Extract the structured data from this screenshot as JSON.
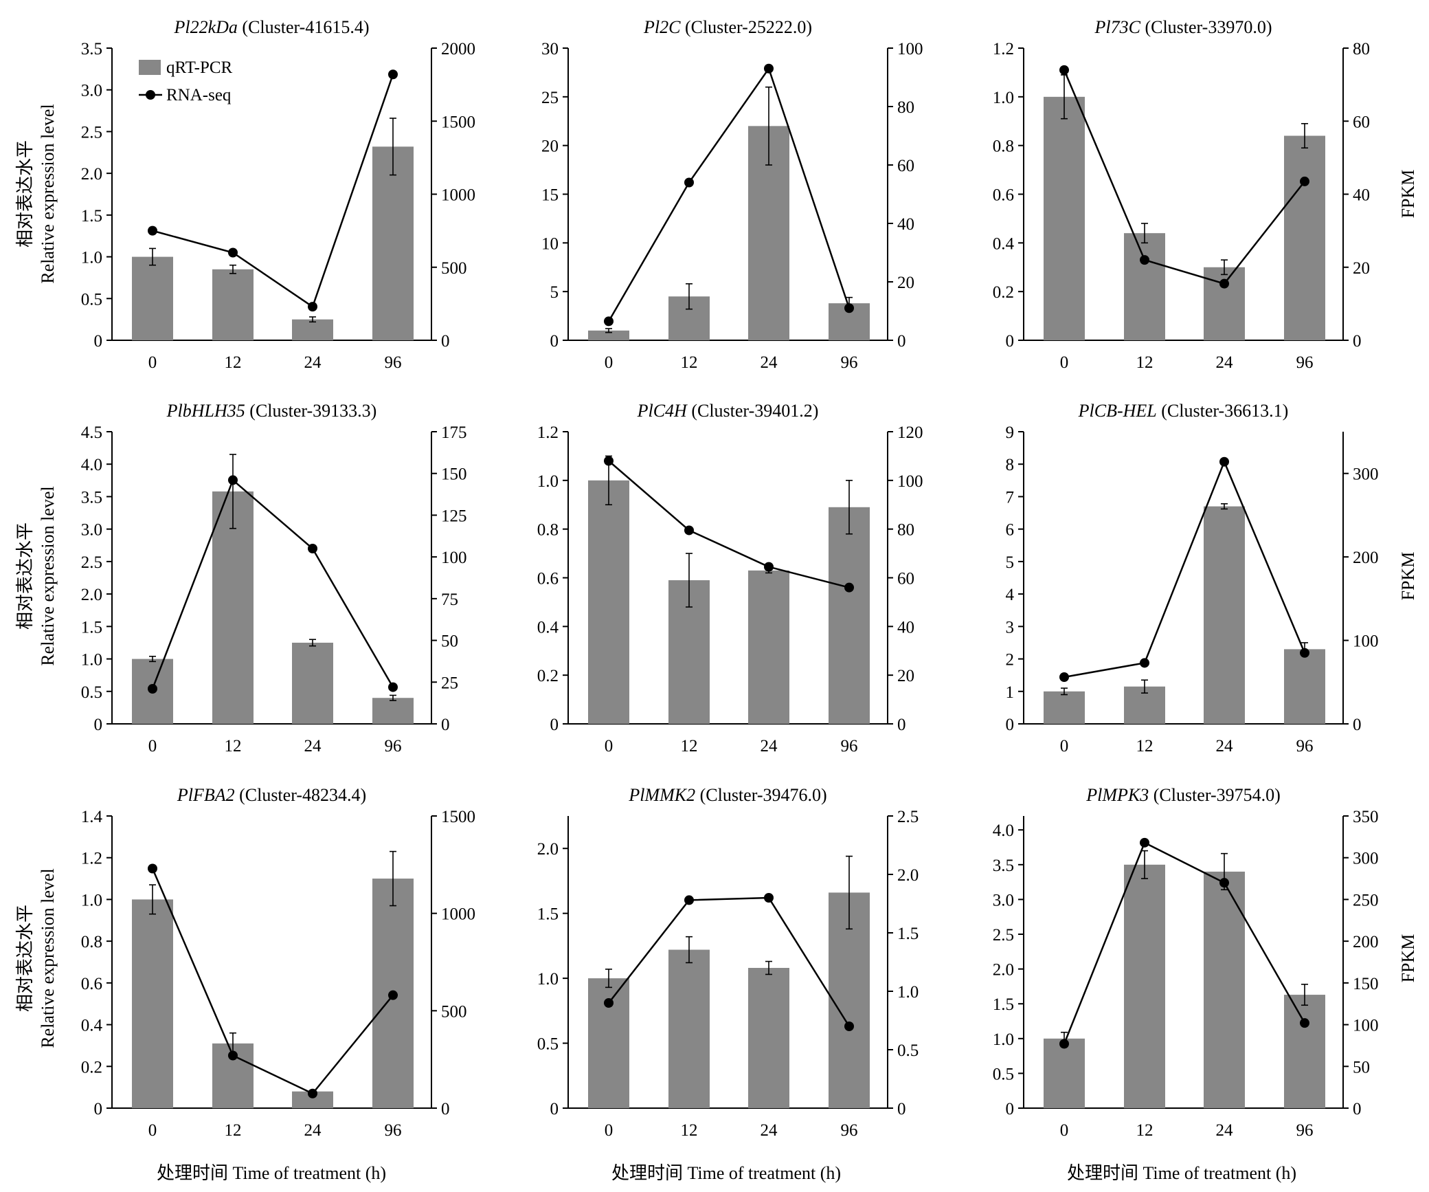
{
  "figure": {
    "y_left_label_cn": "相对表达水平",
    "y_left_label_en": "Relative expression level",
    "y_right_label": "FPKM",
    "x_label": "处理时间 Time of treatment (h)",
    "legend": {
      "bar": "qRT-PCR",
      "line": "RNA-seq"
    },
    "colors": {
      "bar": "#878787",
      "line": "#000000"
    }
  },
  "chart_data": [
    {
      "type": "bar",
      "title_gene": "Pl22kDa",
      "title_cluster": " (Cluster-41615.4)",
      "categories": [
        "0",
        "12",
        "24",
        "96"
      ],
      "series": [
        {
          "name": "qRT-PCR",
          "axis": "left",
          "values": [
            1.0,
            0.85,
            0.25,
            2.32
          ],
          "errors": [
            0.1,
            0.05,
            0.03,
            0.34
          ]
        },
        {
          "name": "RNA-seq",
          "axis": "right",
          "type": "line",
          "values": [
            750,
            600,
            230,
            1820
          ]
        }
      ],
      "ylim_left": [
        0,
        3.5
      ],
      "yticks_left": [
        "0",
        "0.5",
        "1.0",
        "1.5",
        "2.0",
        "2.5",
        "3.0",
        "3.5"
      ],
      "ylim_right": [
        0,
        2000
      ],
      "yticks_right": [
        "0",
        "500",
        "1000",
        "1500",
        "2000"
      ]
    },
    {
      "type": "bar",
      "title_gene": "Pl2C",
      "title_cluster": " (Cluster-25222.0)",
      "categories": [
        "0",
        "12",
        "24",
        "96"
      ],
      "series": [
        {
          "name": "qRT-PCR",
          "axis": "left",
          "values": [
            1.0,
            4.5,
            22.0,
            3.8
          ],
          "errors": [
            0.2,
            1.3,
            4.0,
            0.6
          ]
        },
        {
          "name": "RNA-seq",
          "axis": "right",
          "type": "line",
          "values": [
            6.5,
            54,
            93,
            11
          ]
        }
      ],
      "ylim_left": [
        0,
        30
      ],
      "yticks_left": [
        "0",
        "5",
        "10",
        "15",
        "20",
        "25",
        "30"
      ],
      "ylim_right": [
        0,
        100
      ],
      "yticks_right": [
        "0",
        "20",
        "40",
        "60",
        "80",
        "100"
      ]
    },
    {
      "type": "bar",
      "title_gene": "Pl73C",
      "title_cluster": " (Cluster-33970.0)",
      "categories": [
        "0",
        "12",
        "24",
        "96"
      ],
      "series": [
        {
          "name": "qRT-PCR",
          "axis": "left",
          "values": [
            1.0,
            0.44,
            0.3,
            0.84
          ],
          "errors": [
            0.09,
            0.04,
            0.03,
            0.05
          ]
        },
        {
          "name": "RNA-seq",
          "axis": "right",
          "type": "line",
          "values": [
            74,
            22,
            15.5,
            43.5
          ]
        }
      ],
      "ylim_left": [
        0,
        1.2
      ],
      "yticks_left": [
        "0",
        "0.2",
        "0.4",
        "0.6",
        "0.8",
        "1.0",
        "1.2"
      ],
      "ylim_right": [
        0,
        80
      ],
      "yticks_right": [
        "0",
        "20",
        "40",
        "60",
        "80"
      ]
    },
    {
      "type": "bar",
      "title_gene": "PlbHLH35",
      "title_cluster": " (Cluster-39133.3)",
      "categories": [
        "0",
        "12",
        "24",
        "96"
      ],
      "series": [
        {
          "name": "qRT-PCR",
          "axis": "left",
          "values": [
            1.0,
            3.58,
            1.25,
            0.4
          ],
          "errors": [
            0.04,
            0.57,
            0.05,
            0.04
          ]
        },
        {
          "name": "RNA-seq",
          "axis": "right",
          "type": "line",
          "values": [
            21,
            146,
            105,
            22
          ]
        }
      ],
      "ylim_left": [
        0,
        4.5
      ],
      "yticks_left": [
        "0",
        "0.5",
        "1.0",
        "1.5",
        "2.0",
        "2.5",
        "3.0",
        "3.5",
        "4.0",
        "4.5"
      ],
      "ylim_right": [
        0,
        175
      ],
      "yticks_right": [
        "0",
        "25",
        "50",
        "75",
        "100",
        "125",
        "150",
        "175"
      ]
    },
    {
      "type": "bar",
      "title_gene": "PlC4H",
      "title_cluster": " (Cluster-39401.2)",
      "categories": [
        "0",
        "12",
        "24",
        "96"
      ],
      "series": [
        {
          "name": "qRT-PCR",
          "axis": "left",
          "values": [
            1.0,
            0.59,
            0.63,
            0.89
          ],
          "errors": [
            0.1,
            0.11,
            0.01,
            0.11
          ]
        },
        {
          "name": "RNA-seq",
          "axis": "right",
          "type": "line",
          "values": [
            108,
            79.5,
            64.5,
            56
          ]
        }
      ],
      "ylim_left": [
        0,
        1.2
      ],
      "yticks_left": [
        "0",
        "0.2",
        "0.4",
        "0.6",
        "0.8",
        "1.0",
        "1.2"
      ],
      "ylim_right": [
        0,
        120
      ],
      "yticks_right": [
        "0",
        "20",
        "40",
        "60",
        "80",
        "100",
        "120"
      ]
    },
    {
      "type": "bar",
      "title_gene": "PlCB-HEL",
      "title_cluster": " (Cluster-36613.1)",
      "categories": [
        "0",
        "12",
        "24",
        "96"
      ],
      "series": [
        {
          "name": "qRT-PCR",
          "axis": "left",
          "values": [
            1.0,
            1.15,
            6.7,
            2.3
          ],
          "errors": [
            0.1,
            0.2,
            0.08,
            0.2
          ]
        },
        {
          "name": "RNA-seq",
          "axis": "right",
          "type": "line",
          "values": [
            56,
            73,
            314,
            85
          ]
        }
      ],
      "ylim_left": [
        0,
        9
      ],
      "yticks_left": [
        "0",
        "1",
        "2",
        "3",
        "4",
        "5",
        "6",
        "7",
        "8",
        "9"
      ],
      "ylim_right": [
        0,
        350
      ],
      "yticks_right": [
        "0",
        "100",
        "200",
        "300"
      ]
    },
    {
      "type": "bar",
      "title_gene": "PlFBA2",
      "title_cluster": " (Cluster-48234.4)",
      "categories": [
        "0",
        "12",
        "24",
        "96"
      ],
      "series": [
        {
          "name": "qRT-PCR",
          "axis": "left",
          "values": [
            1.0,
            0.31,
            0.08,
            1.1
          ],
          "errors": [
            0.07,
            0.05,
            0.005,
            0.13
          ]
        },
        {
          "name": "RNA-seq",
          "axis": "right",
          "type": "line",
          "values": [
            1230,
            270,
            75,
            580
          ]
        }
      ],
      "ylim_left": [
        0,
        1.4
      ],
      "yticks_left": [
        "0",
        "0.2",
        "0.4",
        "0.6",
        "0.8",
        "1.0",
        "1.2",
        "1.4"
      ],
      "ylim_right": [
        0,
        1500
      ],
      "yticks_right": [
        "0",
        "500",
        "1000",
        "1500"
      ]
    },
    {
      "type": "bar",
      "title_gene": "PlMMK2",
      "title_cluster": " (Cluster-39476.0)",
      "categories": [
        "0",
        "12",
        "24",
        "96"
      ],
      "series": [
        {
          "name": "qRT-PCR",
          "axis": "left",
          "values": [
            1.0,
            1.22,
            1.08,
            1.66
          ],
          "errors": [
            0.07,
            0.1,
            0.05,
            0.28
          ]
        },
        {
          "name": "RNA-seq",
          "axis": "right",
          "type": "line",
          "values": [
            0.9,
            1.78,
            1.8,
            0.7
          ]
        }
      ],
      "ylim_left": [
        0,
        2.25
      ],
      "yticks_left": [
        "0",
        "0.5",
        "1.0",
        "1.5",
        "2.0"
      ],
      "ylim_right": [
        0,
        2.5
      ],
      "yticks_right": [
        "0",
        "0.5",
        "1.0",
        "1.5",
        "2.0",
        "2.5"
      ]
    },
    {
      "type": "bar",
      "title_gene": "PlMPK3",
      "title_cluster": " (Cluster-39754.0)",
      "categories": [
        "0",
        "12",
        "24",
        "96"
      ],
      "series": [
        {
          "name": "qRT-PCR",
          "axis": "left",
          "values": [
            1.0,
            3.5,
            3.4,
            1.63
          ],
          "errors": [
            0.09,
            0.2,
            0.26,
            0.15
          ]
        },
        {
          "name": "RNA-seq",
          "axis": "right",
          "type": "line",
          "values": [
            77,
            318,
            270,
            102
          ]
        }
      ],
      "ylim_left": [
        0,
        4.2
      ],
      "yticks_left": [
        "0",
        "0.5",
        "1.0",
        "1.5",
        "2.0",
        "2.5",
        "3.0",
        "3.5",
        "4.0"
      ],
      "ylim_right": [
        0,
        350
      ],
      "yticks_right": [
        "0",
        "50",
        "100",
        "150",
        "200",
        "250",
        "300",
        "350"
      ]
    }
  ]
}
